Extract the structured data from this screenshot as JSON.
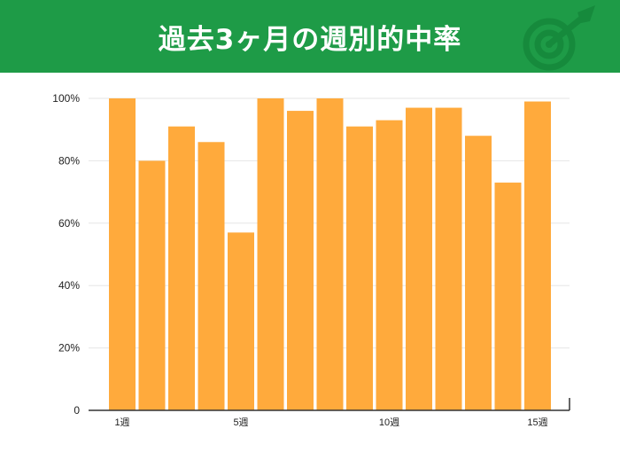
{
  "header": {
    "title": "過去3ヶ月の週別的中率",
    "icon": "target-arrow-icon",
    "background": "#1e9b47"
  },
  "chart_data": {
    "type": "bar",
    "categories": [
      "1週",
      "2週",
      "3週",
      "4週",
      "5週",
      "6週",
      "7週",
      "8週",
      "9週",
      "10週",
      "11週",
      "12週",
      "13週",
      "14週",
      "15週"
    ],
    "x_tick_labels": [
      "1週",
      "5週",
      "10週",
      "15週"
    ],
    "values": [
      100,
      80,
      91,
      86,
      57,
      100,
      96,
      100,
      91,
      93,
      97,
      97,
      88,
      73,
      99
    ],
    "y_tick_labels": [
      "0",
      "20%",
      "40%",
      "60%",
      "80%",
      "100%"
    ],
    "ylim": [
      0,
      100
    ],
    "bar_color": "#ffaa3c",
    "grid": true,
    "title": "",
    "xlabel": "",
    "ylabel": ""
  }
}
